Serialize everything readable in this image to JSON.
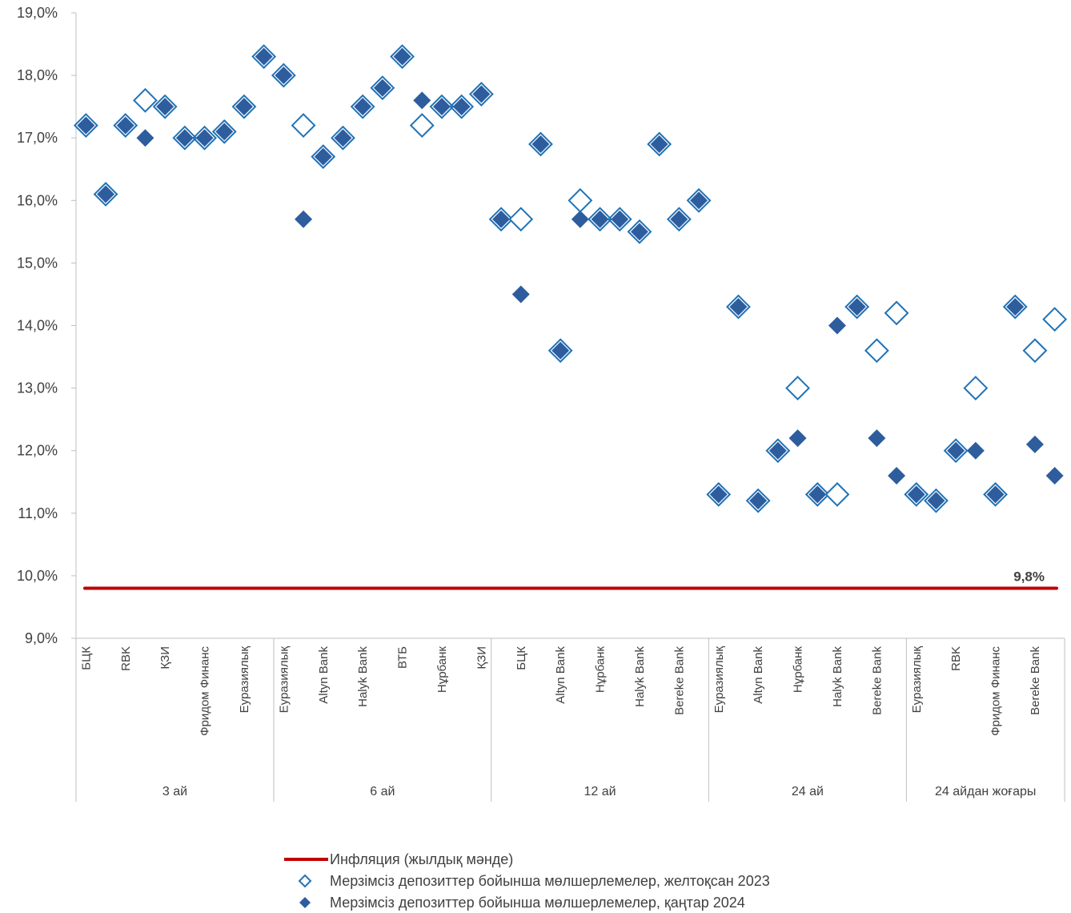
{
  "chart_data": {
    "type": "scatter",
    "ylim": [
      0.09,
      0.19
    ],
    "yticks": [
      "9,0%",
      "10,0%",
      "11,0%",
      "12,0%",
      "13,0%",
      "14,0%",
      "15,0%",
      "16,0%",
      "17,0%",
      "18,0%",
      "19,0%"
    ],
    "groups": [
      {
        "label": "3 ай",
        "count": 10
      },
      {
        "label": "6 ай",
        "count": 11
      },
      {
        "label": "12 ай",
        "count": 11
      },
      {
        "label": "24 ай",
        "count": 10
      },
      {
        "label": "24 айдан жоғары",
        "count": 8
      }
    ],
    "categories": [
      "БЦК",
      "",
      "RBK",
      "",
      "ҚЗИ",
      "",
      "Фридом Финанс",
      "",
      "Еуразиялық",
      "",
      "Еуразиялық",
      "",
      "Altyn Bank",
      "",
      "Halyk Bank",
      "",
      "ВТБ",
      "",
      "Нұрбанк",
      "",
      "ҚЗИ",
      "",
      "БЦК",
      "",
      "Altyn Bank",
      "",
      "Нұрбанк",
      "",
      "Halyk Bank",
      "",
      "Bereke Bank",
      "",
      "Еуразиялық",
      "",
      "Altyn Bank",
      "",
      "Нұрбанк",
      "",
      "Halyk Bank",
      "",
      "Bereke Bank",
      "",
      "Еуразиялық",
      "",
      "RBK",
      "",
      "Фридом Финанс",
      "",
      "Bereke Bank",
      ""
    ],
    "series": [
      {
        "name": "Мерзімсіз депозиттер бойынша мөлшерлемелер, желтоқсан 2023",
        "marker": "diamond-open",
        "color": "#1F73B7",
        "values": [
          0.172,
          0.161,
          0.172,
          0.176,
          0.175,
          0.17,
          0.17,
          0.171,
          0.175,
          0.183,
          0.18,
          0.172,
          0.167,
          0.17,
          0.175,
          0.178,
          0.183,
          0.172,
          0.175,
          0.175,
          0.177,
          0.157,
          0.157,
          0.169,
          0.136,
          0.16,
          0.157,
          0.157,
          0.155,
          0.169,
          0.157,
          0.16,
          0.113,
          0.143,
          0.112,
          0.12,
          0.13,
          0.113,
          0.113,
          0.143,
          0.136,
          0.142,
          0.113,
          0.112,
          0.12,
          0.13,
          0.113,
          0.143,
          0.136,
          0.141
        ]
      },
      {
        "name": "Мерзімсіз депозиттер бойынша мөлшерлемелер, қаңтар 2024",
        "marker": "diamond-filled",
        "color": "#2E5D9E",
        "values": [
          0.172,
          0.161,
          0.172,
          0.17,
          0.175,
          0.17,
          0.17,
          0.171,
          0.175,
          0.183,
          0.18,
          0.157,
          0.167,
          0.17,
          0.175,
          0.178,
          0.183,
          0.176,
          0.175,
          0.175,
          0.177,
          0.157,
          0.145,
          0.169,
          0.136,
          0.157,
          0.157,
          0.157,
          0.155,
          0.169,
          0.157,
          0.16,
          0.113,
          0.143,
          0.112,
          0.12,
          0.122,
          0.113,
          0.14,
          0.143,
          0.122,
          0.116,
          0.113,
          0.112,
          0.12,
          0.12,
          0.113,
          0.143,
          0.121,
          0.116
        ]
      },
      {
        "name": "Инфляция (жылдық мәнде)",
        "marker": "line",
        "color": "#C00000",
        "value": 0.098,
        "value_label": "9,8%"
      }
    ]
  }
}
